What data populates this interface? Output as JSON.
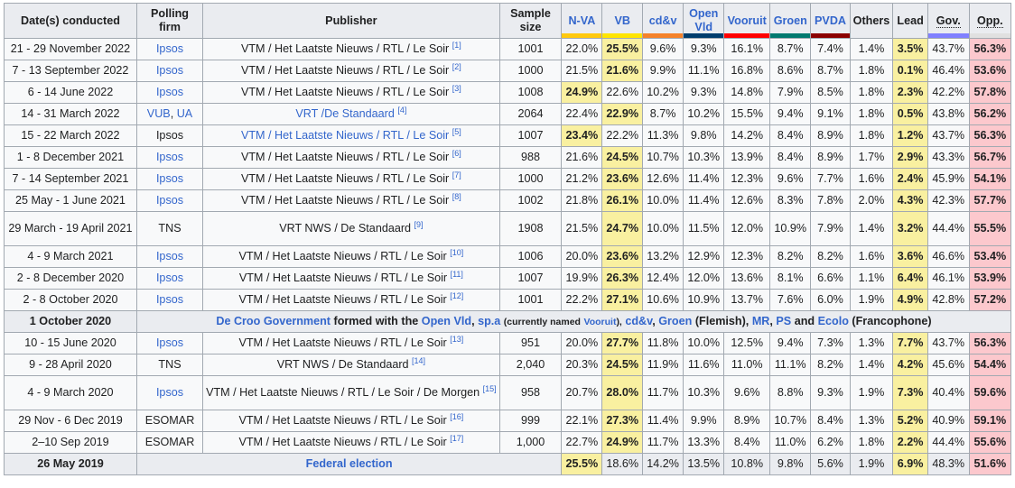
{
  "header": {
    "date": "Date(s) conducted",
    "firm": "Polling firm",
    "publisher": "Publisher",
    "sample": "Sample size",
    "parties": [
      {
        "label": "N-VA",
        "color": "#ffc90e"
      },
      {
        "label": "VB",
        "color": "#ffe500"
      },
      {
        "label": "cd&v",
        "color": "#f5822a"
      },
      {
        "label": "Open Vld",
        "color": "#003d6d"
      },
      {
        "label": "Vooruit",
        "color": "#ff0000"
      },
      {
        "label": "Groen",
        "color": "#01796f"
      },
      {
        "label": "PVDA",
        "color": "#8b0000"
      }
    ],
    "others": "Others",
    "lead": "Lead",
    "gov": "Gov.",
    "opp": "Opp.",
    "gov_color": "#8080ff",
    "opp_color": "#e0e0e0"
  },
  "rows": [
    {
      "date": "21 - 29 November 2022",
      "firm": "Ipsos",
      "publisher": "VTM / Het Laatste Nieuws / RTL / Le Soir",
      "ref": "[1]",
      "sample": "1001",
      "values": [
        "22.0%",
        "25.5%",
        "9.6%",
        "9.3%",
        "16.1%",
        "8.7%",
        "7.4%"
      ],
      "others": "1.4%",
      "lead": "3.5%",
      "gov": "43.7%",
      "opp": "56.3%"
    },
    {
      "date": "7 - 13 September 2022",
      "firm": "Ipsos",
      "publisher": "VTM / Het Laatste Nieuws / RTL / Le Soir",
      "ref": "[2]",
      "sample": "1000",
      "values": [
        "21.5%",
        "21.6%",
        "9.9%",
        "11.1%",
        "16.8%",
        "8.6%",
        "8.7%"
      ],
      "others": "1.8%",
      "lead": "0.1%",
      "gov": "46.4%",
      "opp": "53.6%"
    },
    {
      "date": "6 - 14 June 2022",
      "firm": "Ipsos",
      "publisher": "VTM / Het Laatste Nieuws / RTL / Le Soir",
      "ref": "[3]",
      "sample": "1008",
      "values": [
        "24.9%",
        "22.6%",
        "10.2%",
        "9.3%",
        "14.8%",
        "7.9%",
        "8.5%"
      ],
      "others": "1.8%",
      "lead": "2.3%",
      "gov": "42.2%",
      "opp": "57.8%"
    },
    {
      "date": "14 - 31 March 2022",
      "firm": "VUB, UA",
      "publisher": "VRT /De Standaard",
      "ref": "[4]",
      "sample": "2064",
      "values": [
        "22.4%",
        "22.9%",
        "8.7%",
        "10.2%",
        "15.5%",
        "9.4%",
        "9.1%"
      ],
      "others": "1.8%",
      "lead": "0.5%",
      "gov": "43.8%",
      "opp": "56.2%"
    },
    {
      "date": "15 - 22 March 2022",
      "firm": "Ipsos",
      "publisher": "VTM / Het Laatste Nieuws / RTL / Le Soir",
      "ref": "[5]",
      "sample": "1007",
      "values": [
        "23.4%",
        "22.2%",
        "11.3%",
        "9.8%",
        "14.2%",
        "8.4%",
        "8.9%"
      ],
      "others": "1.8%",
      "lead": "1.2%",
      "gov": "43.7%",
      "opp": "56.3%"
    },
    {
      "date": "1 - 8 December 2021",
      "firm": "Ipsos",
      "publisher": "VTM / Het Laatste Nieuws / RTL / Le Soir",
      "ref": "[6]",
      "sample": "988",
      "values": [
        "21.6%",
        "24.5%",
        "10.7%",
        "10.3%",
        "13.9%",
        "8.4%",
        "8.9%"
      ],
      "others": "1.7%",
      "lead": "2.9%",
      "gov": "43.3%",
      "opp": "56.7%"
    },
    {
      "date": "7 - 14 September 2021",
      "firm": "Ipsos",
      "publisher": "VTM / Het Laatste Nieuws / RTL / Le Soir",
      "ref": "[7]",
      "sample": "1000",
      "values": [
        "21.2%",
        "23.6%",
        "12.6%",
        "11.4%",
        "12.3%",
        "9.6%",
        "7.7%"
      ],
      "others": "1.6%",
      "lead": "2.4%",
      "gov": "45.9%",
      "opp": "54.1%"
    },
    {
      "date": "25 May - 1 June 2021",
      "firm": "Ipsos",
      "publisher": "VTM / Het Laatste Nieuws / RTL / Le Soir",
      "ref": "[8]",
      "sample": "1002",
      "values": [
        "21.8%",
        "26.1%",
        "10.0%",
        "11.4%",
        "12.6%",
        "8.3%",
        "7.8%"
      ],
      "others": "2.0%",
      "lead": "4.3%",
      "gov": "42.3%",
      "opp": "57.7%"
    },
    {
      "date": "29 March - 19 April 2021",
      "firm": "TNS",
      "publisher": "VRT NWS / De Standaard",
      "ref": "[9]",
      "sample": "1908",
      "values": [
        "21.5%",
        "24.7%",
        "10.0%",
        "11.5%",
        "12.0%",
        "10.9%",
        "7.9%"
      ],
      "others": "1.4%",
      "lead": "3.2%",
      "gov": "44.4%",
      "opp": "55.5%"
    },
    {
      "date": "4 - 9 March 2021",
      "firm": "Ipsos",
      "publisher": "VTM / Het Laatste Nieuws / RTL / Le Soir",
      "ref": "[10]",
      "sample": "1006",
      "values": [
        "20.0%",
        "23.6%",
        "13.2%",
        "12.9%",
        "12.3%",
        "8.2%",
        "8.2%"
      ],
      "others": "1.6%",
      "lead": "3.6%",
      "gov": "46.6%",
      "opp": "53.4%"
    },
    {
      "date": "2 - 8 December 2020",
      "firm": "Ipsos",
      "publisher": "VTM / Het Laatste Nieuws / RTL / Le Soir",
      "ref": "[11]",
      "sample": "1007",
      "values": [
        "19.9%",
        "26.3%",
        "12.4%",
        "12.0%",
        "13.6%",
        "8.1%",
        "6.6%"
      ],
      "others": "1.1%",
      "lead": "6.4%",
      "gov": "46.1%",
      "opp": "53.9%"
    },
    {
      "date": "2 - 8 October 2020",
      "firm": "Ipsos",
      "publisher": "VTM / Het Laatste Nieuws / RTL / Le Soir",
      "ref": "[12]",
      "sample": "1001",
      "values": [
        "22.2%",
        "27.1%",
        "10.6%",
        "10.9%",
        "13.7%",
        "7.6%",
        "6.0%"
      ],
      "others": "1.9%",
      "lead": "4.9%",
      "gov": "42.8%",
      "opp": "57.2%"
    }
  ],
  "event": {
    "date": "1 October 2020",
    "gov_link": "De Croo Government",
    "formed_with": "formed with the",
    "open_vld": "Open Vld",
    "comma1": ",",
    "spa": "sp.a",
    "currently_named": "(currently named",
    "vooruit": "Vooruit",
    "close_paren": "),",
    "cdv": "cd&v",
    "comma2": ",",
    "groen": "Groen",
    "flemish": "(Flemish),",
    "mr": "MR",
    "comma3": ",",
    "ps": "PS",
    "and": "and",
    "ecolo": "Ecolo",
    "francophone": "(Francophone)"
  },
  "rows2": [
    {
      "date": "10 - 15 June 2020",
      "firm": "Ipsos",
      "publisher": "VTM / Het Laatste Nieuws / RTL / Le Soir",
      "ref": "[13]",
      "sample": "951",
      "values": [
        "20.0%",
        "27.7%",
        "11.8%",
        "10.0%",
        "12.5%",
        "9.4%",
        "7.3%"
      ],
      "others": "1.3%",
      "lead": "7.7%",
      "gov": "43.7%",
      "opp": "56.3%"
    },
    {
      "date": "9 - 28 April 2020",
      "firm": "TNS",
      "publisher": "VRT NWS / De Standaard",
      "ref": "[14]",
      "sample": "2,040",
      "values": [
        "20.3%",
        "24.5%",
        "11.9%",
        "11.6%",
        "11.0%",
        "11.1%",
        "8.2%"
      ],
      "others": "1.4%",
      "lead": "4.2%",
      "gov": "45.6%",
      "opp": "54.4%"
    },
    {
      "date": "4 - 9 March 2020",
      "firm": "Ipsos",
      "publisher": "VTM / Het Laatste Nieuws / RTL / Le Soir / De Morgen",
      "ref": "[15]",
      "sample": "958",
      "values": [
        "20.7%",
        "28.0%",
        "11.7%",
        "10.3%",
        "9.6%",
        "8.8%",
        "9.3%"
      ],
      "others": "1.9%",
      "lead": "7.3%",
      "gov": "40.4%",
      "opp": "59.6%"
    },
    {
      "date": "29 Nov - 6 Dec 2019",
      "firm": "ESOMAR",
      "publisher": "VTM / Het Laatste Nieuws / RTL / Le Soir",
      "ref": "[16]",
      "sample": "999",
      "values": [
        "22.1%",
        "27.3%",
        "11.4%",
        "9.9%",
        "8.9%",
        "10.7%",
        "8.4%"
      ],
      "others": "1.3%",
      "lead": "5.2%",
      "gov": "40.9%",
      "opp": "59.1%"
    },
    {
      "date": "2–10 Sep 2019",
      "firm": "ESOMAR",
      "publisher": "VTM / Het Laatste Nieuws / RTL / Le Soir",
      "ref": "[17]",
      "sample": "1,000",
      "values": [
        "22.7%",
        "24.9%",
        "11.7%",
        "13.3%",
        "8.4%",
        "11.0%",
        "6.2%"
      ],
      "others": "1.8%",
      "lead": "2.2%",
      "gov": "44.4%",
      "opp": "55.6%"
    }
  ],
  "election": {
    "date": "26 May 2019",
    "label": "Federal election",
    "values": [
      "25.5%",
      "18.6%",
      "14.2%",
      "13.5%",
      "10.8%",
      "9.8%",
      "5.6%"
    ],
    "others": "1.9%",
    "lead": "6.9%",
    "gov": "48.3%",
    "opp": "51.6%"
  }
}
